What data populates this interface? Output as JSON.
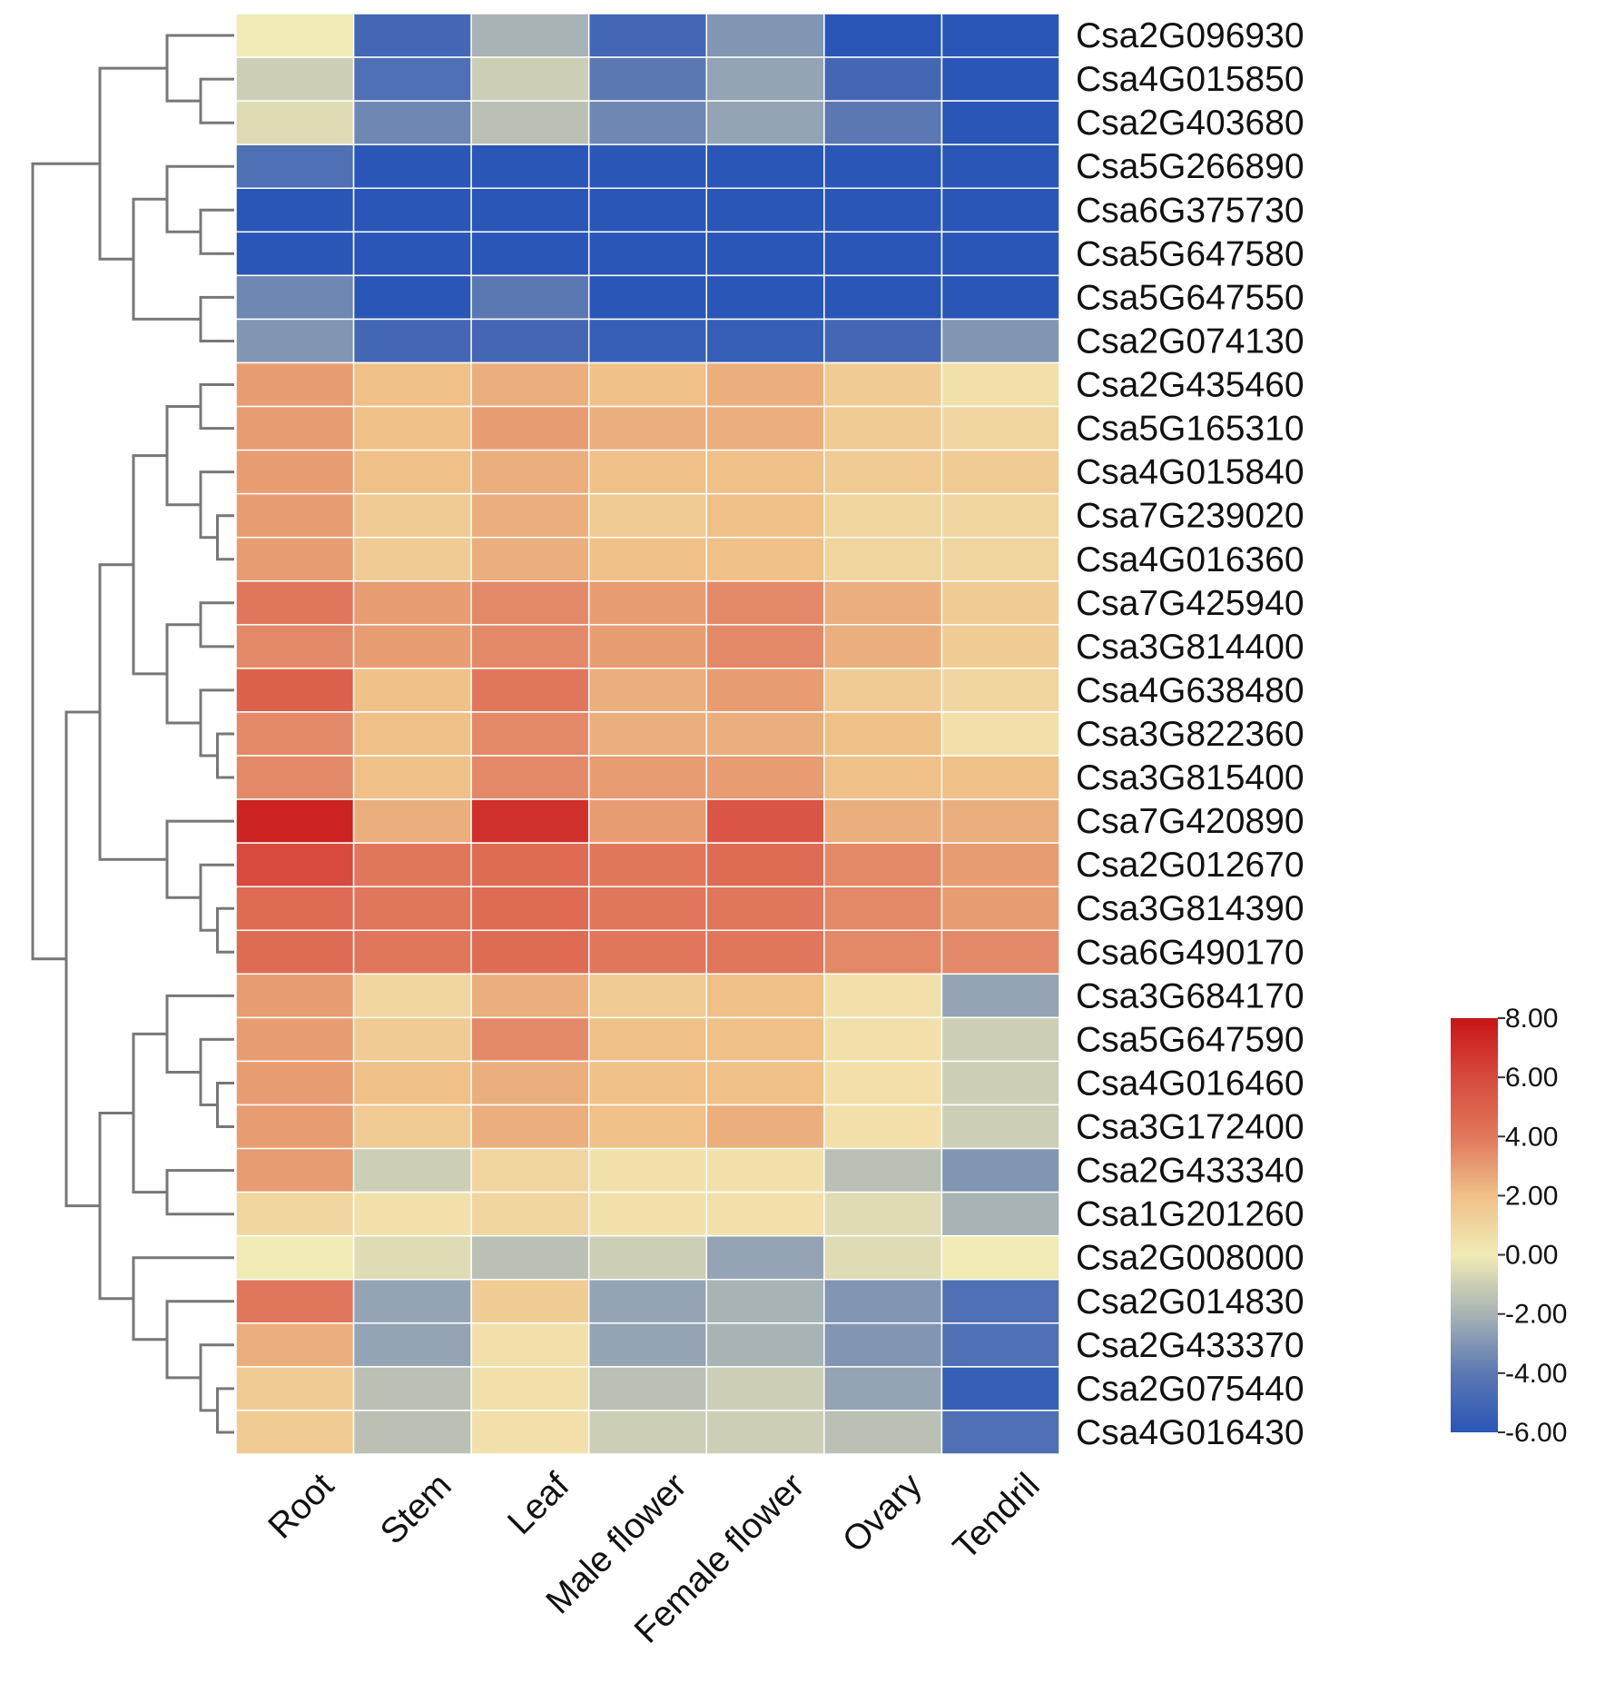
{
  "chart_data": {
    "type": "heatmap",
    "title": "",
    "columns": [
      "Root",
      "Stem",
      "Leaf",
      "Male flower",
      "Female flower",
      "Ovary",
      "Tendril"
    ],
    "rows": [
      "Csa2G096930",
      "Csa4G015850",
      "Csa2G403680",
      "Csa5G266890",
      "Csa6G375730",
      "Csa5G647580",
      "Csa5G647550",
      "Csa2G074130",
      "Csa2G435460",
      "Csa5G165310",
      "Csa4G015840",
      "Csa7G239020",
      "Csa4G016360",
      "Csa7G425940",
      "Csa3G814400",
      "Csa4G638480",
      "Csa3G822360",
      "Csa3G815400",
      "Csa7G420890",
      "Csa2G012670",
      "Csa3G814390",
      "Csa6G490170",
      "Csa3G684170",
      "Csa5G647590",
      "Csa4G016460",
      "Csa3G172400",
      "Csa2G433340",
      "Csa1G201260",
      "Csa2G008000",
      "Csa2G014830",
      "Csa2G433370",
      "Csa2G075440",
      "Csa4G016430"
    ],
    "values": [
      [
        0.0,
        -5.0,
        -2.0,
        -5.0,
        -3.0,
        -6.0,
        -6.0
      ],
      [
        -1.0,
        -4.5,
        -1.0,
        -4.0,
        -2.5,
        -5.0,
        -6.0
      ],
      [
        -0.5,
        -3.5,
        -1.5,
        -3.5,
        -2.5,
        -4.0,
        -6.0
      ],
      [
        -4.5,
        -6.0,
        -6.0,
        -6.0,
        -6.0,
        -6.0,
        -6.0
      ],
      [
        -6.0,
        -6.0,
        -6.0,
        -6.0,
        -6.0,
        -6.0,
        -6.0
      ],
      [
        -6.0,
        -6.0,
        -6.0,
        -6.0,
        -6.0,
        -6.0,
        -6.0
      ],
      [
        -3.5,
        -6.0,
        -4.0,
        -6.0,
        -6.0,
        -6.0,
        -6.0
      ],
      [
        -3.0,
        -5.0,
        -5.0,
        -5.5,
        -5.5,
        -5.0,
        -3.0
      ],
      [
        3.0,
        2.0,
        2.5,
        2.0,
        2.5,
        1.5,
        0.5
      ],
      [
        3.0,
        2.0,
        3.0,
        2.5,
        2.5,
        1.5,
        1.0
      ],
      [
        3.0,
        2.0,
        2.5,
        2.0,
        2.0,
        1.5,
        1.5
      ],
      [
        3.0,
        1.5,
        2.5,
        1.5,
        2.0,
        1.0,
        1.0
      ],
      [
        3.0,
        1.5,
        2.5,
        2.0,
        2.0,
        1.0,
        1.0
      ],
      [
        4.0,
        3.0,
        3.5,
        3.0,
        3.5,
        2.5,
        1.5
      ],
      [
        3.5,
        3.0,
        3.5,
        3.0,
        3.5,
        2.5,
        1.5
      ],
      [
        5.0,
        2.0,
        4.0,
        2.5,
        3.0,
        1.5,
        1.0
      ],
      [
        3.5,
        2.0,
        3.5,
        2.5,
        2.5,
        2.0,
        0.5
      ],
      [
        3.5,
        2.0,
        3.5,
        3.0,
        3.0,
        2.0,
        2.0
      ],
      [
        7.5,
        2.5,
        7.0,
        3.0,
        5.5,
        2.5,
        2.5
      ],
      [
        6.0,
        4.0,
        4.5,
        4.0,
        4.5,
        3.5,
        3.0
      ],
      [
        4.5,
        4.0,
        4.5,
        4.0,
        4.0,
        3.5,
        3.0
      ],
      [
        4.5,
        4.0,
        4.5,
        4.0,
        4.0,
        3.5,
        3.5
      ],
      [
        3.0,
        1.0,
        2.5,
        1.5,
        2.0,
        0.5,
        -2.5
      ],
      [
        3.0,
        1.5,
        3.5,
        2.0,
        2.0,
        0.5,
        -1.0
      ],
      [
        3.0,
        2.0,
        2.5,
        2.0,
        2.0,
        0.5,
        -1.0
      ],
      [
        3.0,
        1.5,
        2.5,
        2.0,
        2.5,
        0.5,
        -1.0
      ],
      [
        3.0,
        -1.0,
        1.0,
        0.5,
        0.5,
        -1.5,
        -3.0
      ],
      [
        1.0,
        0.5,
        1.0,
        0.5,
        0.5,
        -0.5,
        -2.0
      ],
      [
        0.0,
        -0.5,
        -1.5,
        -1.0,
        -2.5,
        -0.5,
        0.0
      ],
      [
        4.0,
        -2.5,
        1.5,
        -2.5,
        -2.0,
        -3.0,
        -4.5
      ],
      [
        2.5,
        -2.5,
        0.5,
        -2.5,
        -2.0,
        -3.0,
        -4.5
      ],
      [
        1.5,
        -1.5,
        0.5,
        -1.5,
        -1.0,
        -2.5,
        -5.5
      ],
      [
        1.5,
        -1.5,
        0.5,
        -1.0,
        -1.0,
        -1.5,
        -4.5
      ]
    ],
    "color_scale": {
      "min": -6.0,
      "max": 8.0,
      "ticks": [
        "8.00",
        "6.00",
        "4.00",
        "2.00",
        "0.00",
        "-2.00",
        "-4.00",
        "-6.00"
      ],
      "stops": [
        {
          "value": -6.0,
          "color": "#2a56b8"
        },
        {
          "value": -4.0,
          "color": "#5b78b2"
        },
        {
          "value": -2.0,
          "color": "#a7b3b4"
        },
        {
          "value": 0.0,
          "color": "#f1eab5"
        },
        {
          "value": 2.0,
          "color": "#efc088"
        },
        {
          "value": 4.0,
          "color": "#e0775c"
        },
        {
          "value": 6.0,
          "color": "#d84a3e"
        },
        {
          "value": 8.0,
          "color": "#c81517"
        }
      ]
    },
    "dendrogram": {
      "merges": [
        [
          2,
          3
        ],
        [
          1,
          34
        ],
        [
          5,
          6
        ],
        [
          4,
          36
        ],
        [
          7,
          8
        ],
        [
          37,
          38
        ],
        [
          35,
          39
        ],
        [
          12,
          13
        ],
        [
          11,
          41
        ],
        [
          9,
          10
        ],
        [
          43,
          42
        ],
        [
          14,
          15
        ],
        [
          17,
          18
        ],
        [
          16,
          46
        ],
        [
          45,
          47
        ],
        [
          44,
          48
        ],
        [
          21,
          22
        ],
        [
          20,
          50
        ],
        [
          19,
          51
        ],
        [
          49,
          52
        ],
        [
          25,
          26
        ],
        [
          24,
          54
        ],
        [
          23,
          55
        ],
        [
          27,
          28
        ],
        [
          56,
          57
        ],
        [
          32,
          33
        ],
        [
          31,
          59
        ],
        [
          30,
          60
        ],
        [
          29,
          61
        ],
        [
          58,
          62
        ],
        [
          53,
          63
        ],
        [
          40,
          64
        ]
      ],
      "heights": [
        1,
        2,
        1,
        2,
        1,
        3,
        4,
        0.5,
        1,
        1,
        2,
        1,
        0.5,
        1,
        2,
        3,
        0.5,
        1,
        2,
        4,
        0.5,
        1,
        2,
        2,
        3,
        0.5,
        1,
        2,
        3,
        4,
        5,
        6
      ]
    }
  }
}
